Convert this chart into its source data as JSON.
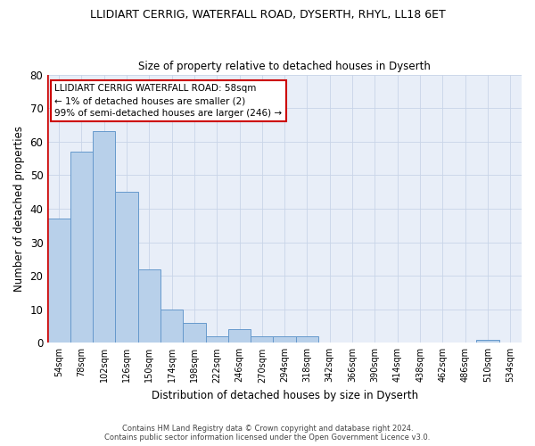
{
  "title": "LLIDIART CERRIG, WATERFALL ROAD, DYSERTH, RHYL, LL18 6ET",
  "subtitle": "Size of property relative to detached houses in Dyserth",
  "xlabel": "Distribution of detached houses by size in Dyserth",
  "ylabel": "Number of detached properties",
  "bar_color": "#b8d0ea",
  "bar_edge_color": "#6699cc",
  "background_color": "#e8eef8",
  "categories": [
    "54sqm",
    "78sqm",
    "102sqm",
    "126sqm",
    "150sqm",
    "174sqm",
    "198sqm",
    "222sqm",
    "246sqm",
    "270sqm",
    "294sqm",
    "318sqm",
    "342sqm",
    "366sqm",
    "390sqm",
    "414sqm",
    "438sqm",
    "462sqm",
    "486sqm",
    "510sqm",
    "534sqm"
  ],
  "values": [
    37,
    57,
    63,
    45,
    22,
    10,
    6,
    2,
    4,
    2,
    2,
    2,
    0,
    0,
    0,
    0,
    0,
    0,
    0,
    1,
    0
  ],
  "ylim": [
    0,
    80
  ],
  "yticks": [
    0,
    10,
    20,
    30,
    40,
    50,
    60,
    70,
    80
  ],
  "annotation_text_line1": "LLIDIART CERRIG WATERFALL ROAD: 58sqm",
  "annotation_text_line2": "← 1% of detached houses are smaller (2)",
  "annotation_text_line3": "99% of semi-detached houses are larger (246) →",
  "footer_line1": "Contains HM Land Registry data © Crown copyright and database right 2024.",
  "footer_line2": "Contains public sector information licensed under the Open Government Licence v3.0.",
  "grid_color": "#c8d4e8",
  "annotation_box_color": "#ffffff",
  "annotation_box_edge_color": "#cc0000",
  "red_line_color": "#cc0000"
}
